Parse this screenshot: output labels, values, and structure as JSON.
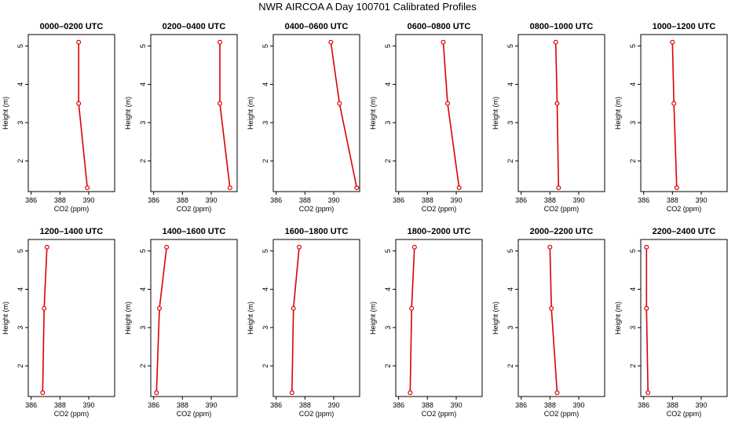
{
  "title": "NWR AIRCOA A  Day 100701  Calibrated Profiles",
  "chart_data": {
    "type": "line",
    "xlabel": "CO2 (ppm)",
    "ylabel": "Height (m)",
    "xlim": [
      385.8,
      391.8
    ],
    "ylim": [
      1.2,
      5.3
    ],
    "x_ticks": [
      386,
      388,
      390
    ],
    "y_ticks": [
      2,
      3,
      4,
      5
    ],
    "line_color": "#dd0000",
    "heights": [
      1.3,
      3.5,
      5.1
    ],
    "panels": [
      {
        "title": "0000–0200 UTC",
        "co2": [
          389.9,
          389.3,
          389.3
        ]
      },
      {
        "title": "0200–0400 UTC",
        "co2": [
          391.3,
          390.6,
          390.6
        ]
      },
      {
        "title": "0400–0600 UTC",
        "co2": [
          391.6,
          390.4,
          389.8
        ]
      },
      {
        "title": "0600–0800 UTC",
        "co2": [
          390.2,
          389.4,
          389.1
        ]
      },
      {
        "title": "0800–1000 UTC",
        "co2": [
          388.6,
          388.5,
          388.4
        ]
      },
      {
        "title": "1000–1200 UTC",
        "co2": [
          388.3,
          388.1,
          388.0
        ]
      },
      {
        "title": "1200–1400 UTC",
        "co2": [
          386.8,
          386.9,
          387.1
        ]
      },
      {
        "title": "1400–1600 UTC",
        "co2": [
          386.2,
          386.4,
          386.9
        ]
      },
      {
        "title": "1600–1800 UTC",
        "co2": [
          387.1,
          387.2,
          387.6
        ]
      },
      {
        "title": "1800–2000 UTC",
        "co2": [
          386.8,
          386.9,
          387.1
        ]
      },
      {
        "title": "2000–2200 UTC",
        "co2": [
          388.5,
          388.1,
          388.0
        ]
      },
      {
        "title": "2200–2400 UTC",
        "co2": [
          386.3,
          386.2,
          386.2
        ]
      }
    ]
  }
}
